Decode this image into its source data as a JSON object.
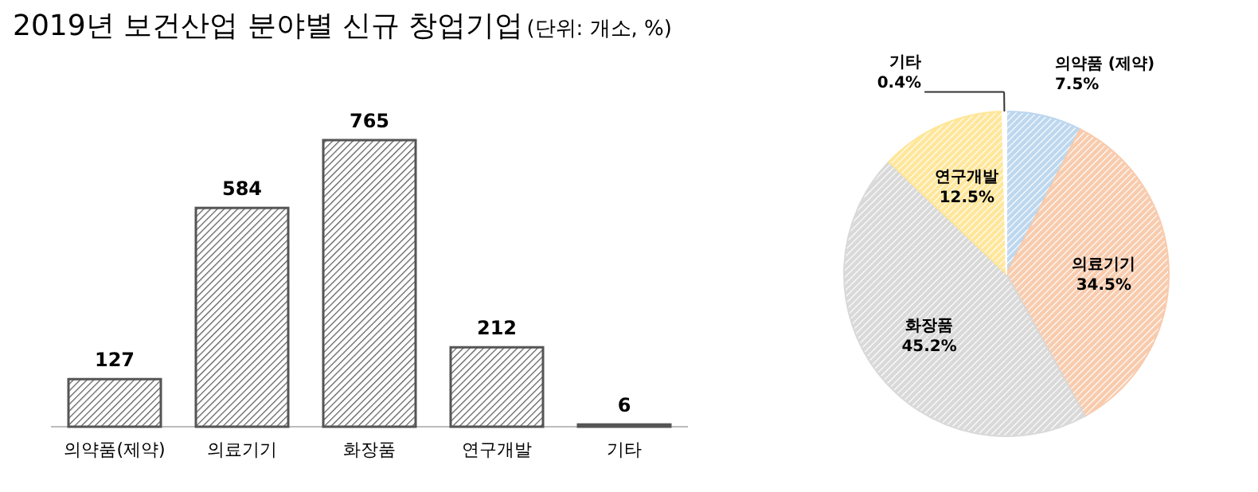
{
  "chart_data": [
    {
      "type": "bar",
      "title": "2019년 보건산업 분야별 신규 창업기업",
      "subtitle": "(단위: 개소, %)",
      "categories": [
        "의약품(제약)",
        "의료기기",
        "화장품",
        "연구개발",
        "기타"
      ],
      "values": [
        127,
        584,
        765,
        212,
        6
      ],
      "color": "#555555",
      "data_labels": true
    },
    {
      "type": "pie",
      "categories": [
        "의약품 (제약)",
        "의료기기",
        "화장품",
        "연구개발",
        "기타"
      ],
      "values": [
        7.5,
        34.5,
        45.2,
        12.5,
        0.4
      ],
      "value_labels": [
        "7.5%",
        "34.5%",
        "45.2%",
        "12.5%",
        "0.4%"
      ],
      "colors": [
        "#bdd7ee",
        "#f8cbad",
        "#d9d9d9",
        "#ffe699",
        "#ffffff"
      ]
    }
  ]
}
